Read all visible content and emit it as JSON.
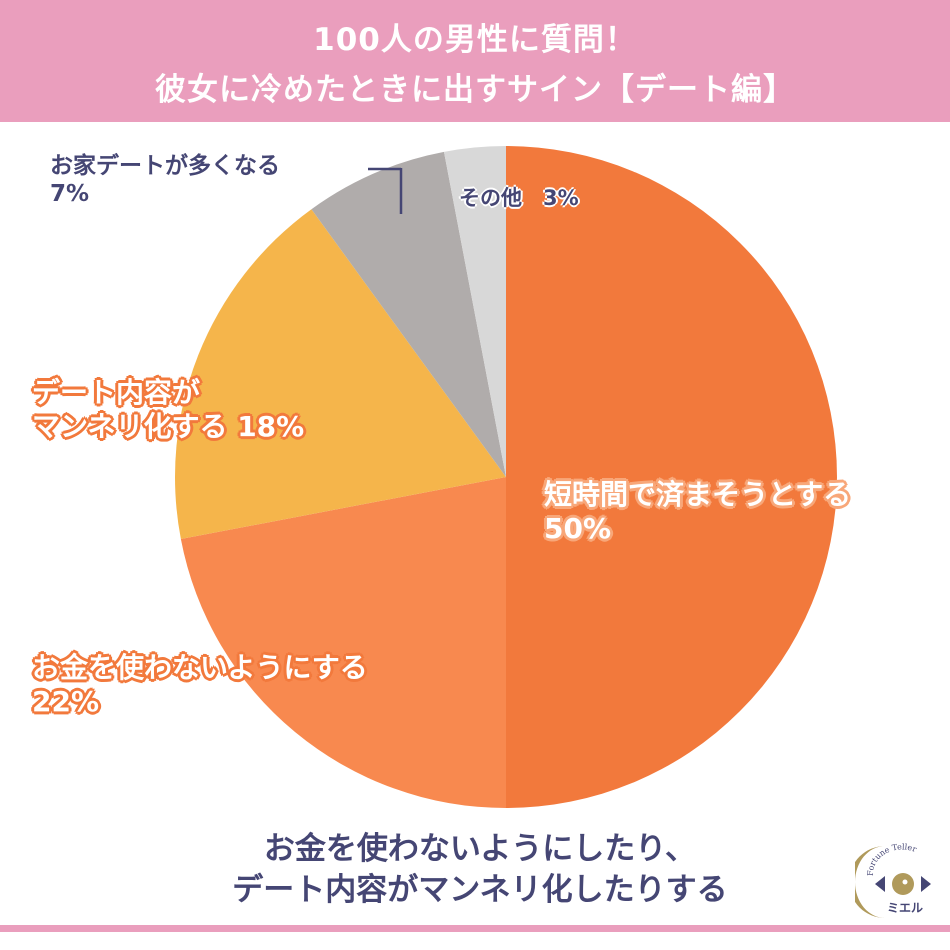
{
  "header": {
    "title_line1": "100人の男性に質問！",
    "title_line2": "彼女に冷めたときに出すサイン【デート編】"
  },
  "chart_data": {
    "type": "pie",
    "title": "100人の男性に質問！ 彼女に冷めたときに出すサイン【デート編】",
    "categories": [
      "短時間で済まそうとする",
      "お金を使わないようにする",
      "デート内容がマンネリ化する",
      "お家デートが多くなる",
      "その他"
    ],
    "values": [
      50,
      22,
      18,
      7,
      3
    ],
    "unit": "%",
    "colors": [
      "#f2793c",
      "#f8894f",
      "#f5b54b",
      "#b0acab",
      "#d8d8d8"
    ],
    "start": "top",
    "direction": "clockwise"
  },
  "labels": {
    "short_time": {
      "name": "短時間で済まそうとする",
      "value": "50%"
    },
    "no_money": {
      "name": "お金を使わないようにする",
      "value": "22%"
    },
    "mannerism_line1": "デート内容が",
    "mannerism_line2": "マンネリ化する 18%",
    "home_date": {
      "name": "お家デートが多くなる",
      "value": "7%"
    },
    "other": "その他　3%"
  },
  "footer": {
    "line1": "お金を使わないようにしたり、",
    "line2": "デート内容がマンネリ化したりする"
  },
  "logo": {
    "top_text": "Fortune Teller",
    "bottom_text": "ミエル",
    "gold": "#b09a5b",
    "navy": "#454674"
  }
}
